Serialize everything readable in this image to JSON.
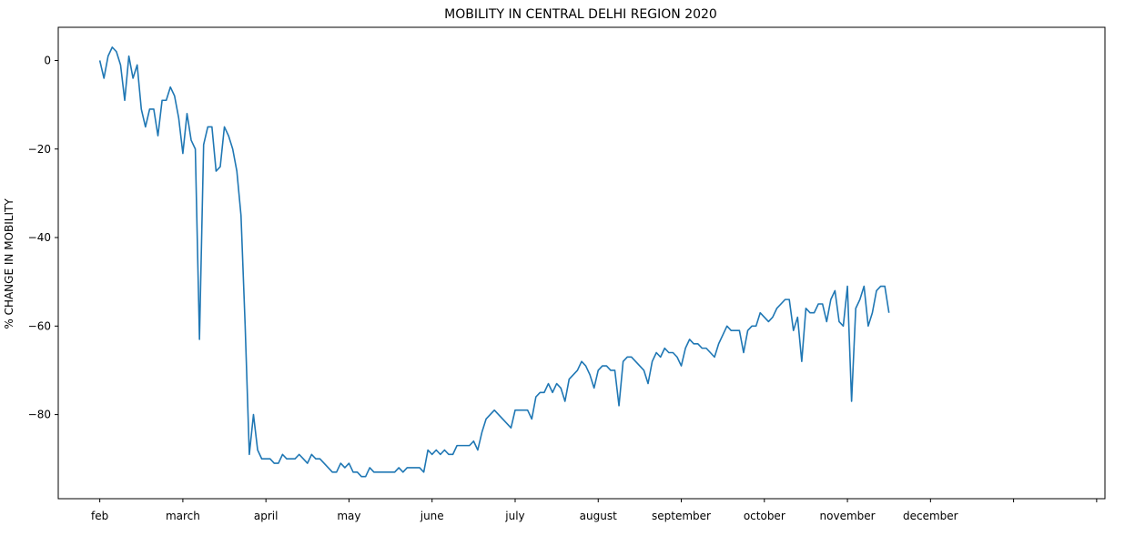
{
  "chart_data": {
    "type": "line",
    "title": "MOBILITY IN CENTRAL DELHI REGION 2020",
    "xlabel": "",
    "ylabel": "% CHANGE IN MOBILITY",
    "ylim": [
      -99,
      7.5
    ],
    "xlim": [
      -10,
      242
    ],
    "grid": false,
    "legend": "none",
    "x_ticks": [
      {
        "x": 0,
        "label": "feb"
      },
      {
        "x": 20,
        "label": "march"
      },
      {
        "x": 40,
        "label": "april"
      },
      {
        "x": 60,
        "label": "may"
      },
      {
        "x": 80,
        "label": "june"
      },
      {
        "x": 100,
        "label": "july"
      },
      {
        "x": 120,
        "label": "august"
      },
      {
        "x": 140,
        "label": "september"
      },
      {
        "x": 160,
        "label": "october"
      },
      {
        "x": 180,
        "label": "november"
      },
      {
        "x": 200,
        "label": "december"
      },
      {
        "x": 220,
        "label": ""
      },
      {
        "x": 240,
        "label": ""
      }
    ],
    "y_ticks": [
      {
        "y": 0,
        "label": "0"
      },
      {
        "y": -20,
        "label": "−20"
      },
      {
        "y": -40,
        "label": "−40"
      },
      {
        "y": -60,
        "label": "−60"
      },
      {
        "y": -80,
        "label": "−80"
      }
    ],
    "series": [
      {
        "color": "#1f77b4",
        "points": [
          [
            0,
            0
          ],
          [
            1,
            -4
          ],
          [
            2,
            1
          ],
          [
            3,
            3
          ],
          [
            4,
            2
          ],
          [
            5,
            -1
          ],
          [
            6,
            -9
          ],
          [
            7,
            1
          ],
          [
            8,
            -4
          ],
          [
            9,
            -1
          ],
          [
            10,
            -11
          ],
          [
            11,
            -15
          ],
          [
            12,
            -11
          ],
          [
            13,
            -11
          ],
          [
            14,
            -17
          ],
          [
            15,
            -9
          ],
          [
            16,
            -9
          ],
          [
            17,
            -6
          ],
          [
            18,
            -8
          ],
          [
            19,
            -13
          ],
          [
            20,
            -21
          ],
          [
            21,
            -12
          ],
          [
            22,
            -18
          ],
          [
            23,
            -20
          ],
          [
            24,
            -63
          ],
          [
            25,
            -19
          ],
          [
            26,
            -15
          ],
          [
            27,
            -15
          ],
          [
            28,
            -25
          ],
          [
            29,
            -24
          ],
          [
            30,
            -15
          ],
          [
            31,
            -17
          ],
          [
            32,
            -20
          ],
          [
            33,
            -25
          ],
          [
            34,
            -35
          ],
          [
            35,
            -60
          ],
          [
            36,
            -89
          ],
          [
            37,
            -80
          ],
          [
            38,
            -88
          ],
          [
            39,
            -90
          ],
          [
            40,
            -90
          ],
          [
            41,
            -90
          ],
          [
            42,
            -91
          ],
          [
            43,
            -91
          ],
          [
            44,
            -89
          ],
          [
            45,
            -90
          ],
          [
            46,
            -90
          ],
          [
            47,
            -90
          ],
          [
            48,
            -89
          ],
          [
            49,
            -90
          ],
          [
            50,
            -91
          ],
          [
            51,
            -89
          ],
          [
            52,
            -90
          ],
          [
            53,
            -90
          ],
          [
            54,
            -91
          ],
          [
            55,
            -92
          ],
          [
            56,
            -93
          ],
          [
            57,
            -93
          ],
          [
            58,
            -91
          ],
          [
            59,
            -92
          ],
          [
            60,
            -91
          ],
          [
            61,
            -93
          ],
          [
            62,
            -93
          ],
          [
            63,
            -94
          ],
          [
            64,
            -94
          ],
          [
            65,
            -92
          ],
          [
            66,
            -93
          ],
          [
            67,
            -93
          ],
          [
            68,
            -93
          ],
          [
            69,
            -93
          ],
          [
            70,
            -93
          ],
          [
            71,
            -93
          ],
          [
            72,
            -92
          ],
          [
            73,
            -93
          ],
          [
            74,
            -92
          ],
          [
            75,
            -92
          ],
          [
            76,
            -92
          ],
          [
            77,
            -92
          ],
          [
            78,
            -93
          ],
          [
            79,
            -88
          ],
          [
            80,
            -89
          ],
          [
            81,
            -88
          ],
          [
            82,
            -89
          ],
          [
            83,
            -88
          ],
          [
            84,
            -89
          ],
          [
            85,
            -89
          ],
          [
            86,
            -87
          ],
          [
            87,
            -87
          ],
          [
            88,
            -87
          ],
          [
            89,
            -87
          ],
          [
            90,
            -86
          ],
          [
            91,
            -88
          ],
          [
            92,
            -84
          ],
          [
            93,
            -81
          ],
          [
            94,
            -80
          ],
          [
            95,
            -79
          ],
          [
            96,
            -80
          ],
          [
            97,
            -81
          ],
          [
            98,
            -82
          ],
          [
            99,
            -83
          ],
          [
            100,
            -79
          ],
          [
            101,
            -79
          ],
          [
            102,
            -79
          ],
          [
            103,
            -79
          ],
          [
            104,
            -81
          ],
          [
            105,
            -76
          ],
          [
            106,
            -75
          ],
          [
            107,
            -75
          ],
          [
            108,
            -73
          ],
          [
            109,
            -75
          ],
          [
            110,
            -73
          ],
          [
            111,
            -74
          ],
          [
            112,
            -77
          ],
          [
            113,
            -72
          ],
          [
            114,
            -71
          ],
          [
            115,
            -70
          ],
          [
            116,
            -68
          ],
          [
            117,
            -69
          ],
          [
            118,
            -71
          ],
          [
            119,
            -74
          ],
          [
            120,
            -70
          ],
          [
            121,
            -69
          ],
          [
            122,
            -69
          ],
          [
            123,
            -70
          ],
          [
            124,
            -70
          ],
          [
            125,
            -78
          ],
          [
            126,
            -68
          ],
          [
            127,
            -67
          ],
          [
            128,
            -67
          ],
          [
            129,
            -68
          ],
          [
            130,
            -69
          ],
          [
            131,
            -70
          ],
          [
            132,
            -73
          ],
          [
            133,
            -68
          ],
          [
            134,
            -66
          ],
          [
            135,
            -67
          ],
          [
            136,
            -65
          ],
          [
            137,
            -66
          ],
          [
            138,
            -66
          ],
          [
            139,
            -67
          ],
          [
            140,
            -69
          ],
          [
            141,
            -65
          ],
          [
            142,
            -63
          ],
          [
            143,
            -64
          ],
          [
            144,
            -64
          ],
          [
            145,
            -65
          ],
          [
            146,
            -65
          ],
          [
            147,
            -66
          ],
          [
            148,
            -67
          ],
          [
            149,
            -64
          ],
          [
            150,
            -62
          ],
          [
            151,
            -60
          ],
          [
            152,
            -61
          ],
          [
            153,
            -61
          ],
          [
            154,
            -61
          ],
          [
            155,
            -66
          ],
          [
            156,
            -61
          ],
          [
            157,
            -60
          ],
          [
            158,
            -60
          ],
          [
            159,
            -57
          ],
          [
            160,
            -58
          ],
          [
            161,
            -59
          ],
          [
            162,
            -58
          ],
          [
            163,
            -56
          ],
          [
            164,
            -55
          ],
          [
            165,
            -54
          ],
          [
            166,
            -54
          ],
          [
            167,
            -61
          ],
          [
            168,
            -58
          ],
          [
            169,
            -68
          ],
          [
            170,
            -56
          ],
          [
            171,
            -57
          ],
          [
            172,
            -57
          ],
          [
            173,
            -55
          ],
          [
            174,
            -55
          ],
          [
            175,
            -59
          ],
          [
            176,
            -54
          ],
          [
            177,
            -52
          ],
          [
            178,
            -59
          ],
          [
            179,
            -60
          ],
          [
            180,
            -51
          ],
          [
            181,
            -77
          ],
          [
            182,
            -56
          ],
          [
            183,
            -54
          ],
          [
            184,
            -51
          ],
          [
            185,
            -60
          ],
          [
            186,
            -57
          ],
          [
            187,
            -52
          ],
          [
            188,
            -51
          ],
          [
            189,
            -51
          ],
          [
            190,
            -57
          ]
        ]
      }
    ]
  }
}
